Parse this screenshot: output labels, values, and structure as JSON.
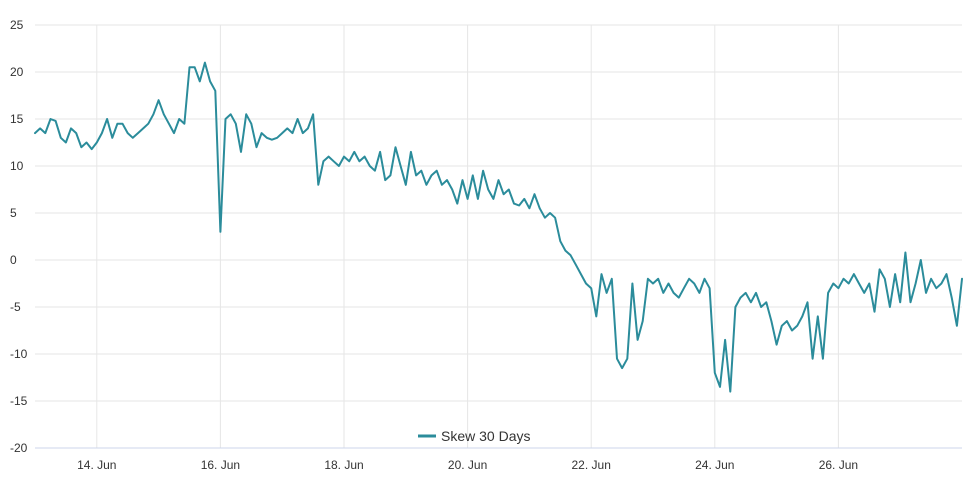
{
  "chart_data": {
    "type": "line",
    "title": "",
    "xlabel": "",
    "ylabel": "",
    "ylim": [
      -20,
      25
    ],
    "yticks": [
      25,
      20,
      15,
      10,
      5,
      0,
      -5,
      -10,
      -15,
      -20
    ],
    "xlim": [
      "2024-06-13",
      "2024-06-28"
    ],
    "xticks": [
      {
        "date": "2024-06-14",
        "label": "14. Jun"
      },
      {
        "date": "2024-06-16",
        "label": "16. Jun"
      },
      {
        "date": "2024-06-18",
        "label": "18. Jun"
      },
      {
        "date": "2024-06-20",
        "label": "20. Jun"
      },
      {
        "date": "2024-06-22",
        "label": "22. Jun"
      },
      {
        "date": "2024-06-24",
        "label": "24. Jun"
      },
      {
        "date": "2024-06-26",
        "label": "26. Jun"
      }
    ],
    "grid": true,
    "legend_position": "bottom-center",
    "series": [
      {
        "name": "Skew 30 Days",
        "color": "#2b8c9b",
        "points": [
          [
            "2024-06-13 00:00",
            13.5
          ],
          [
            "2024-06-13 02:00",
            14.0
          ],
          [
            "2024-06-13 04:00",
            13.5
          ],
          [
            "2024-06-13 06:00",
            15.0
          ],
          [
            "2024-06-13 08:00",
            14.8
          ],
          [
            "2024-06-13 10:00",
            13.0
          ],
          [
            "2024-06-13 12:00",
            12.5
          ],
          [
            "2024-06-13 14:00",
            14.0
          ],
          [
            "2024-06-13 16:00",
            13.5
          ],
          [
            "2024-06-13 18:00",
            12.0
          ],
          [
            "2024-06-13 20:00",
            12.5
          ],
          [
            "2024-06-13 22:00",
            11.8
          ],
          [
            "2024-06-14 00:00",
            12.5
          ],
          [
            "2024-06-14 02:00",
            13.5
          ],
          [
            "2024-06-14 04:00",
            15.0
          ],
          [
            "2024-06-14 06:00",
            13.0
          ],
          [
            "2024-06-14 08:00",
            14.5
          ],
          [
            "2024-06-14 10:00",
            14.5
          ],
          [
            "2024-06-14 12:00",
            13.5
          ],
          [
            "2024-06-14 14:00",
            13.0
          ],
          [
            "2024-06-14 16:00",
            13.5
          ],
          [
            "2024-06-14 18:00",
            14.0
          ],
          [
            "2024-06-14 20:00",
            14.5
          ],
          [
            "2024-06-14 22:00",
            15.5
          ],
          [
            "2024-06-15 00:00",
            17.0
          ],
          [
            "2024-06-15 02:00",
            15.5
          ],
          [
            "2024-06-15 04:00",
            14.5
          ],
          [
            "2024-06-15 06:00",
            13.5
          ],
          [
            "2024-06-15 08:00",
            15.0
          ],
          [
            "2024-06-15 10:00",
            14.5
          ],
          [
            "2024-06-15 12:00",
            20.5
          ],
          [
            "2024-06-15 14:00",
            20.5
          ],
          [
            "2024-06-15 16:00",
            19.0
          ],
          [
            "2024-06-15 18:00",
            21.0
          ],
          [
            "2024-06-15 20:00",
            19.0
          ],
          [
            "2024-06-15 22:00",
            18.0
          ],
          [
            "2024-06-16 00:00",
            3.0
          ],
          [
            "2024-06-16 02:00",
            15.0
          ],
          [
            "2024-06-16 04:00",
            15.5
          ],
          [
            "2024-06-16 06:00",
            14.5
          ],
          [
            "2024-06-16 08:00",
            11.5
          ],
          [
            "2024-06-16 10:00",
            15.5
          ],
          [
            "2024-06-16 12:00",
            14.5
          ],
          [
            "2024-06-16 14:00",
            12.0
          ],
          [
            "2024-06-16 16:00",
            13.5
          ],
          [
            "2024-06-16 18:00",
            13.0
          ],
          [
            "2024-06-16 20:00",
            12.8
          ],
          [
            "2024-06-16 22:00",
            13.0
          ],
          [
            "2024-06-17 00:00",
            13.5
          ],
          [
            "2024-06-17 02:00",
            14.0
          ],
          [
            "2024-06-17 04:00",
            13.5
          ],
          [
            "2024-06-17 06:00",
            15.0
          ],
          [
            "2024-06-17 08:00",
            13.5
          ],
          [
            "2024-06-17 10:00",
            14.0
          ],
          [
            "2024-06-17 12:00",
            15.5
          ],
          [
            "2024-06-17 14:00",
            8.0
          ],
          [
            "2024-06-17 16:00",
            10.5
          ],
          [
            "2024-06-17 18:00",
            11.0
          ],
          [
            "2024-06-17 20:00",
            10.5
          ],
          [
            "2024-06-17 22:00",
            10.0
          ],
          [
            "2024-06-18 00:00",
            11.0
          ],
          [
            "2024-06-18 02:00",
            10.5
          ],
          [
            "2024-06-18 04:00",
            11.5
          ],
          [
            "2024-06-18 06:00",
            10.5
          ],
          [
            "2024-06-18 08:00",
            11.0
          ],
          [
            "2024-06-18 10:00",
            10.0
          ],
          [
            "2024-06-18 12:00",
            9.5
          ],
          [
            "2024-06-18 14:00",
            11.5
          ],
          [
            "2024-06-18 16:00",
            8.5
          ],
          [
            "2024-06-18 18:00",
            9.0
          ],
          [
            "2024-06-18 20:00",
            12.0
          ],
          [
            "2024-06-18 22:00",
            10.0
          ],
          [
            "2024-06-19 00:00",
            8.0
          ],
          [
            "2024-06-19 02:00",
            11.5
          ],
          [
            "2024-06-19 04:00",
            9.0
          ],
          [
            "2024-06-19 06:00",
            9.5
          ],
          [
            "2024-06-19 08:00",
            8.0
          ],
          [
            "2024-06-19 10:00",
            9.0
          ],
          [
            "2024-06-19 12:00",
            9.5
          ],
          [
            "2024-06-19 14:00",
            8.0
          ],
          [
            "2024-06-19 16:00",
            8.5
          ],
          [
            "2024-06-19 18:00",
            7.5
          ],
          [
            "2024-06-19 20:00",
            6.0
          ],
          [
            "2024-06-19 22:00",
            8.5
          ],
          [
            "2024-06-20 00:00",
            6.5
          ],
          [
            "2024-06-20 02:00",
            9.0
          ],
          [
            "2024-06-20 04:00",
            6.5
          ],
          [
            "2024-06-20 06:00",
            9.5
          ],
          [
            "2024-06-20 08:00",
            7.5
          ],
          [
            "2024-06-20 10:00",
            6.5
          ],
          [
            "2024-06-20 12:00",
            8.5
          ],
          [
            "2024-06-20 14:00",
            7.0
          ],
          [
            "2024-06-20 16:00",
            7.5
          ],
          [
            "2024-06-20 18:00",
            6.0
          ],
          [
            "2024-06-20 20:00",
            5.8
          ],
          [
            "2024-06-20 22:00",
            6.5
          ],
          [
            "2024-06-21 00:00",
            5.5
          ],
          [
            "2024-06-21 02:00",
            7.0
          ],
          [
            "2024-06-21 04:00",
            5.5
          ],
          [
            "2024-06-21 06:00",
            4.5
          ],
          [
            "2024-06-21 08:00",
            5.0
          ],
          [
            "2024-06-21 10:00",
            4.5
          ],
          [
            "2024-06-21 12:00",
            2.0
          ],
          [
            "2024-06-21 14:00",
            1.0
          ],
          [
            "2024-06-21 16:00",
            0.5
          ],
          [
            "2024-06-21 18:00",
            -0.5
          ],
          [
            "2024-06-21 20:00",
            -1.5
          ],
          [
            "2024-06-21 22:00",
            -2.5
          ],
          [
            "2024-06-22 00:00",
            -3.0
          ],
          [
            "2024-06-22 02:00",
            -6.0
          ],
          [
            "2024-06-22 04:00",
            -1.5
          ],
          [
            "2024-06-22 06:00",
            -3.5
          ],
          [
            "2024-06-22 08:00",
            -2.0
          ],
          [
            "2024-06-22 10:00",
            -10.5
          ],
          [
            "2024-06-22 12:00",
            -11.5
          ],
          [
            "2024-06-22 14:00",
            -10.5
          ],
          [
            "2024-06-22 16:00",
            -2.5
          ],
          [
            "2024-06-22 18:00",
            -8.5
          ],
          [
            "2024-06-22 20:00",
            -6.5
          ],
          [
            "2024-06-22 22:00",
            -2.0
          ],
          [
            "2024-06-23 00:00",
            -2.5
          ],
          [
            "2024-06-23 02:00",
            -2.0
          ],
          [
            "2024-06-23 04:00",
            -3.5
          ],
          [
            "2024-06-23 06:00",
            -2.5
          ],
          [
            "2024-06-23 08:00",
            -3.5
          ],
          [
            "2024-06-23 10:00",
            -4.0
          ],
          [
            "2024-06-23 12:00",
            -3.0
          ],
          [
            "2024-06-23 14:00",
            -2.0
          ],
          [
            "2024-06-23 16:00",
            -2.5
          ],
          [
            "2024-06-23 18:00",
            -3.5
          ],
          [
            "2024-06-23 20:00",
            -2.0
          ],
          [
            "2024-06-23 22:00",
            -3.0
          ],
          [
            "2024-06-24 00:00",
            -12.0
          ],
          [
            "2024-06-24 02:00",
            -13.5
          ],
          [
            "2024-06-24 04:00",
            -8.5
          ],
          [
            "2024-06-24 06:00",
            -14.0
          ],
          [
            "2024-06-24 08:00",
            -5.0
          ],
          [
            "2024-06-24 10:00",
            -4.0
          ],
          [
            "2024-06-24 12:00",
            -3.5
          ],
          [
            "2024-06-24 14:00",
            -4.5
          ],
          [
            "2024-06-24 16:00",
            -3.5
          ],
          [
            "2024-06-24 18:00",
            -5.0
          ],
          [
            "2024-06-24 20:00",
            -4.5
          ],
          [
            "2024-06-24 22:00",
            -6.5
          ],
          [
            "2024-06-25 00:00",
            -9.0
          ],
          [
            "2024-06-25 02:00",
            -7.0
          ],
          [
            "2024-06-25 04:00",
            -6.5
          ],
          [
            "2024-06-25 06:00",
            -7.5
          ],
          [
            "2024-06-25 08:00",
            -7.0
          ],
          [
            "2024-06-25 10:00",
            -6.0
          ],
          [
            "2024-06-25 12:00",
            -4.5
          ],
          [
            "2024-06-25 14:00",
            -10.5
          ],
          [
            "2024-06-25 16:00",
            -6.0
          ],
          [
            "2024-06-25 18:00",
            -10.5
          ],
          [
            "2024-06-25 20:00",
            -3.5
          ],
          [
            "2024-06-25 22:00",
            -2.5
          ],
          [
            "2024-06-26 00:00",
            -3.0
          ],
          [
            "2024-06-26 02:00",
            -2.0
          ],
          [
            "2024-06-26 04:00",
            -2.5
          ],
          [
            "2024-06-26 06:00",
            -1.5
          ],
          [
            "2024-06-26 08:00",
            -2.5
          ],
          [
            "2024-06-26 10:00",
            -3.5
          ],
          [
            "2024-06-26 12:00",
            -2.5
          ],
          [
            "2024-06-26 14:00",
            -5.5
          ],
          [
            "2024-06-26 16:00",
            -1.0
          ],
          [
            "2024-06-26 18:00",
            -2.0
          ],
          [
            "2024-06-26 20:00",
            -5.0
          ],
          [
            "2024-06-26 22:00",
            -1.5
          ],
          [
            "2024-06-27 00:00",
            -4.5
          ],
          [
            "2024-06-27 02:00",
            0.8
          ],
          [
            "2024-06-27 04:00",
            -4.5
          ],
          [
            "2024-06-27 06:00",
            -2.5
          ],
          [
            "2024-06-27 08:00",
            0.0
          ],
          [
            "2024-06-27 10:00",
            -3.5
          ],
          [
            "2024-06-27 12:00",
            -2.0
          ],
          [
            "2024-06-27 14:00",
            -3.0
          ],
          [
            "2024-06-27 16:00",
            -2.5
          ],
          [
            "2024-06-27 18:00",
            -1.5
          ],
          [
            "2024-06-27 20:00",
            -4.0
          ],
          [
            "2024-06-27 22:00",
            -7.0
          ],
          [
            "2024-06-28 00:00",
            -2.0
          ]
        ]
      }
    ]
  }
}
